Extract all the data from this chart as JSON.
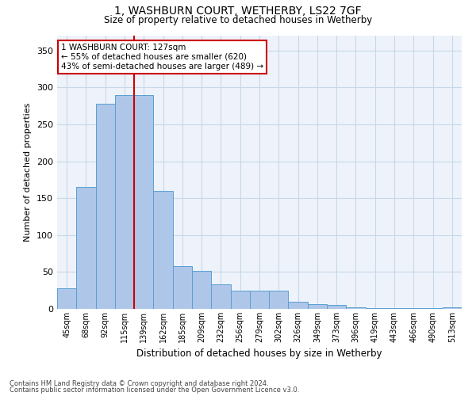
{
  "title": "1, WASHBURN COURT, WETHERBY, LS22 7GF",
  "subtitle": "Size of property relative to detached houses in Wetherby",
  "xlabel": "Distribution of detached houses by size in Wetherby",
  "ylabel": "Number of detached properties",
  "categories": [
    "45sqm",
    "68sqm",
    "92sqm",
    "115sqm",
    "139sqm",
    "162sqm",
    "185sqm",
    "209sqm",
    "232sqm",
    "256sqm",
    "279sqm",
    "302sqm",
    "326sqm",
    "349sqm",
    "373sqm",
    "396sqm",
    "419sqm",
    "443sqm",
    "466sqm",
    "490sqm",
    "513sqm"
  ],
  "values": [
    28,
    165,
    278,
    290,
    290,
    160,
    58,
    52,
    33,
    25,
    25,
    25,
    10,
    6,
    5,
    2,
    1,
    1,
    1,
    1,
    2
  ],
  "bar_color": "#aec6e8",
  "bar_edge_color": "#5a9fd4",
  "grid_color": "#c8d8e8",
  "background_color": "#eef3fb",
  "property_line_x": 3.5,
  "property_sqm": 127,
  "annotation_text": "1 WASHBURN COURT: 127sqm\n← 55% of detached houses are smaller (620)\n43% of semi-detached houses are larger (489) →",
  "annotation_box_color": "#ffffff",
  "annotation_border_color": "#cc0000",
  "property_line_color": "#cc0000",
  "ylim": [
    0,
    370
  ],
  "yticks": [
    0,
    50,
    100,
    150,
    200,
    250,
    300,
    350
  ],
  "footnote1": "Contains HM Land Registry data © Crown copyright and database right 2024.",
  "footnote2": "Contains public sector information licensed under the Open Government Licence v3.0."
}
